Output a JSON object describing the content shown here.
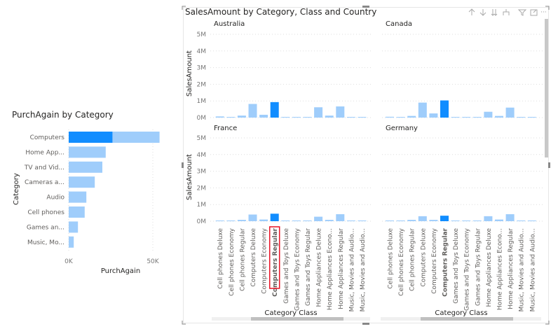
{
  "left_chart": {
    "chart_data": {
      "type": "bar",
      "orientation": "horizontal",
      "title": "PurchAgain by Category",
      "xlabel": "PurchAgain",
      "ylabel": "Category",
      "xlim": [
        0,
        55000
      ],
      "x_ticks": [
        "0K",
        "50K"
      ],
      "categories": [
        "Computers",
        "Home App...",
        "TV and Vid...",
        "Cameras a...",
        "Audio",
        "Cell phones",
        "Games an...",
        "Music, Mo..."
      ],
      "values": [
        54000,
        22000,
        20000,
        15500,
        10500,
        9500,
        5500,
        3000
      ],
      "highlighted_values": [
        26000,
        null,
        null,
        null,
        null,
        null,
        null,
        null
      ],
      "grid": true
    }
  },
  "right_chart": {
    "title": "SalesAmount by Category, Class and Country",
    "header_icons": [
      "drill-up-icon",
      "drill-down-icon",
      "expand-all-icon",
      "expand-hierarchy-icon",
      "filter-icon",
      "focus-mode-icon",
      "more-options-icon"
    ],
    "chart_data": {
      "type": "bar",
      "small_multiples": true,
      "ylabel": "SalesAmount",
      "xlabel": "Category Class",
      "ylim": [
        0,
        5000000
      ],
      "y_ticks": [
        "0M",
        "1M",
        "2M",
        "3M",
        "4M",
        "5M"
      ],
      "categories": [
        "Cell phones Deluxe",
        "Cell phones Economy",
        "Cell phones Regular",
        "Computers Deluxe",
        "Computers Economy",
        "Computers Regular",
        "Games and Toys Deluxe",
        "Games and Toys Economy",
        "Games and Toys Regular",
        "Home Appliances Deluxe",
        "Home Appliances Econo...",
        "Home Appliances Regular",
        "Music, Movies and Audio...",
        "Music, Movies and Audio..."
      ],
      "highlighted_category": "Computers Regular",
      "panels": [
        {
          "name": "Australia",
          "values": [
            70000,
            30000,
            120000,
            820000,
            170000,
            930000,
            30000,
            30000,
            30000,
            620000,
            120000,
            670000,
            20000,
            20000
          ]
        },
        {
          "name": "Canada",
          "values": [
            50000,
            30000,
            100000,
            900000,
            250000,
            1030000,
            30000,
            30000,
            30000,
            350000,
            100000,
            600000,
            20000,
            20000
          ]
        },
        {
          "name": "France",
          "values": [
            30000,
            30000,
            80000,
            400000,
            100000,
            450000,
            20000,
            20000,
            20000,
            270000,
            80000,
            420000,
            20000,
            20000
          ]
        },
        {
          "name": "Germany",
          "values": [
            30000,
            30000,
            80000,
            300000,
            80000,
            330000,
            20000,
            20000,
            20000,
            300000,
            100000,
            420000,
            20000,
            20000
          ]
        }
      ],
      "grid": true
    }
  },
  "colors": {
    "bar": "#9fcdfb",
    "highlight": "#118dff",
    "selection_outline": "#e81123"
  }
}
